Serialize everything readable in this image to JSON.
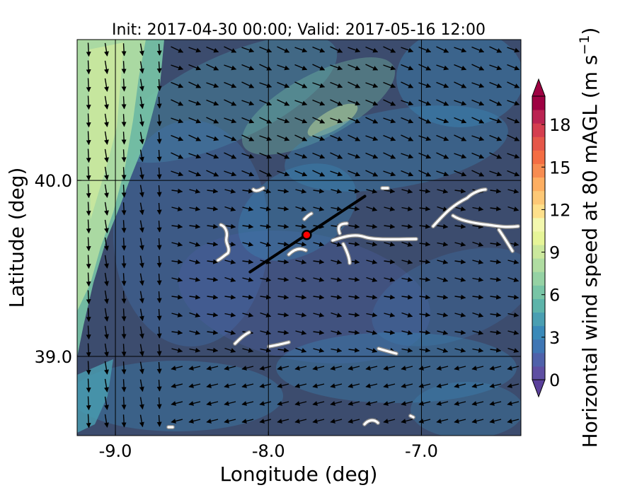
{
  "chart_data": {
    "type": "heatmap",
    "title": "Init: 2017-04-30 00:00; Valid: 2017-05-16 12:00",
    "xlabel": "Longitude (deg)",
    "ylabel": "Latitude (deg)",
    "xlim": [
      -9.25,
      -6.35
    ],
    "ylim": [
      38.55,
      40.8
    ],
    "x_ticks": [
      {
        "value": -9.0,
        "label": "-9.0"
      },
      {
        "value": -8.0,
        "label": "-8.0"
      },
      {
        "value": -7.0,
        "label": "-7.0"
      }
    ],
    "y_ticks": [
      {
        "value": 40.0,
        "label": "40.0"
      },
      {
        "value": 39.0,
        "label": "39.0"
      }
    ],
    "grid": true,
    "colorbar": {
      "label": "Horizontal wind speed at 80 mAGL (m s",
      "label_exponent": "−1",
      "label_close": ")",
      "min": 0,
      "max": 20,
      "ticks": [
        {
          "value": 0,
          "label": "0"
        },
        {
          "value": 3,
          "label": "3"
        },
        {
          "value": 6,
          "label": "6"
        },
        {
          "value": 9,
          "label": "9"
        },
        {
          "value": 12,
          "label": "12"
        },
        {
          "value": 15,
          "label": "15"
        },
        {
          "value": 18,
          "label": "18"
        }
      ],
      "colors": [
        "#5e4fa2",
        "#4f61aa",
        "#3f76b4",
        "#3a8ab9",
        "#4a9fb2",
        "#5db4aa",
        "#78c5a6",
        "#95d2a4",
        "#b0dda2",
        "#cbe89d",
        "#e6f598",
        "#f3f8ae",
        "#fee08b",
        "#fdc876",
        "#fdae61",
        "#f78c51",
        "#f46d43",
        "#e55749",
        "#d53e4f",
        "#bb2452",
        "#9e0142"
      ],
      "extend": "both"
    },
    "transect": {
      "start": {
        "lon": -8.12,
        "lat": 39.48
      },
      "end": {
        "lon": -7.37,
        "lat": 39.91
      },
      "color": "#000000"
    },
    "site_marker": {
      "lon": -7.75,
      "lat": 39.69,
      "color": "#ff0000"
    }
  }
}
